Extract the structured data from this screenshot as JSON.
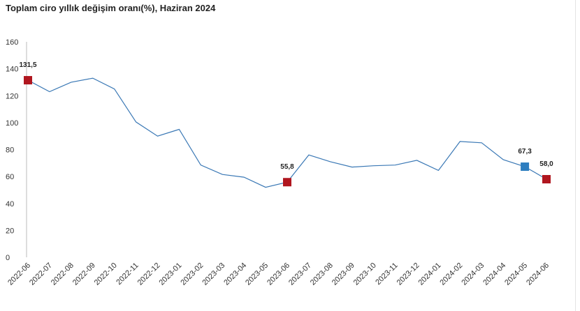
{
  "chart_data": {
    "type": "line",
    "title": "Toplam ciro yıllık değişim oranı(%), Haziran 2024",
    "xlabel": "",
    "ylabel": "",
    "ylim": [
      0,
      160
    ],
    "yticks": [
      0,
      20,
      40,
      60,
      80,
      100,
      120,
      140,
      160
    ],
    "grid": false,
    "legend": "none",
    "categories": [
      "2022-06",
      "2022-07",
      "2022-08",
      "2022-09",
      "2022-10",
      "2022-11",
      "2022-12",
      "2023-01",
      "2023-02",
      "2023-03",
      "2023-04",
      "2023-05",
      "2023-06",
      "2023-07",
      "2023-08",
      "2023-09",
      "2023-10",
      "2023-11",
      "2023-12",
      "2024-01",
      "2024-02",
      "2024-03",
      "2024-04",
      "2024-05",
      "2024-06"
    ],
    "series": [
      {
        "values": [
          131.5,
          123,
          130,
          133,
          125,
          100.5,
          90,
          95,
          68.5,
          61.5,
          59.5,
          52,
          55.8,
          76,
          71,
          67,
          68,
          68.5,
          72,
          64.5,
          86,
          85,
          72.5,
          67.3,
          58.0
        ],
        "color": "#3a78b5"
      }
    ],
    "highlighted_points": [
      {
        "category": "2022-06",
        "label": "131,5",
        "color": "#b0161f"
      },
      {
        "category": "2023-06",
        "label": "55,8",
        "color": "#b0161f"
      },
      {
        "category": "2024-05",
        "label": "67,3",
        "color": "#2e7ebf"
      },
      {
        "category": "2024-06",
        "label": "58,0",
        "color": "#b0161f"
      }
    ],
    "axis_color": "#bbbbbb"
  }
}
